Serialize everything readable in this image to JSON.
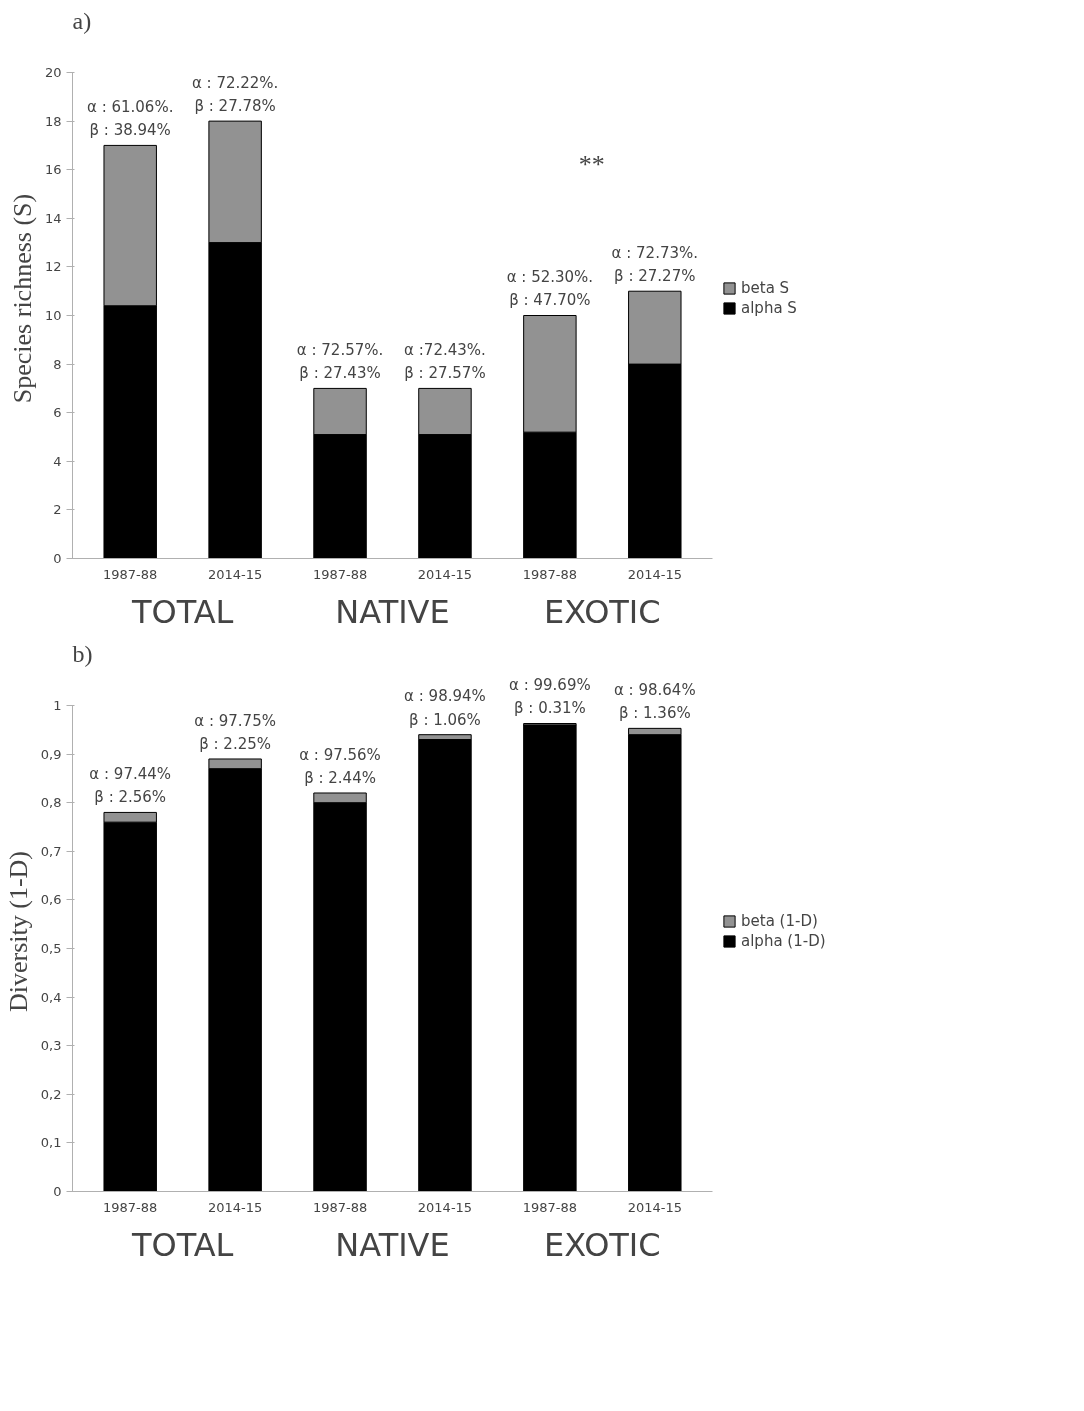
{
  "chart_data": [
    {
      "type": "bar",
      "title": "a)",
      "ylabel": "Species richness (S)",
      "stacked": true,
      "categories": [
        "1987-88",
        "2014-15",
        "1987-88",
        "2014-15",
        "1987-88",
        "2014-15"
      ],
      "series": [
        {
          "name": "alpha S",
          "color": "#000000",
          "values": [
            10.4,
            13,
            5.1,
            5.1,
            5.2,
            8
          ]
        },
        {
          "name": "beta S",
          "color": "#929292",
          "values": [
            6.6,
            5,
            1.9,
            1.9,
            4.8,
            3
          ]
        }
      ],
      "ylim": [
        0,
        20
      ],
      "yticks": [
        0,
        2,
        4,
        6,
        8,
        10,
        12,
        14,
        16,
        18,
        20
      ],
      "grid": false,
      "legend": "right",
      "annotations": [
        "α : 61.06%.\nβ : 38.94%",
        "α : 72.22%.\nβ : 27.78%",
        "α : 72.57%.\nβ : 27.43%",
        "α :72.43%.\nβ : 27.57%",
        "α : 52.30%.\nβ : 47.70%",
        "α : 72.73%.\nβ : 27.27%",
        "TOTAL",
        "NATIVE",
        "EXOTIC",
        "**"
      ]
    },
    {
      "type": "bar",
      "title": "b)",
      "ylabel": "Diversity (1-D)",
      "stacked": true,
      "categories": [
        "1987-88",
        "2014-15",
        "1987-88",
        "2014-15",
        "1987-88",
        "2014-15"
      ],
      "series": [
        {
          "name": "alpha (1-D)",
          "color": "#000000",
          "values": [
            0.76,
            0.87,
            0.8,
            0.93,
            0.96,
            0.94
          ]
        },
        {
          "name": "beta (1-D)",
          "color": "#929292",
          "values": [
            0.02,
            0.02,
            0.02,
            0.01,
            0.003,
            0.013
          ]
        }
      ],
      "ylim": [
        0,
        1
      ],
      "yticks": [
        0,
        {
          "value": 0.1,
          "label": "0,1"
        },
        {
          "value": 0.2,
          "label": "0,2"
        },
        {
          "value": 0.3,
          "label": "0,3"
        },
        {
          "value": 0.4,
          "label": "0,4"
        },
        {
          "value": 0.5,
          "label": "0,5"
        },
        {
          "value": 0.6,
          "label": "0,6"
        },
        {
          "value": 0.7,
          "label": "0,7"
        },
        {
          "value": 0.8,
          "label": "0,8"
        },
        {
          "value": 0.9,
          "label": "0,9"
        },
        1
      ],
      "grid": false,
      "legend": "right",
      "annotations": [
        "α : 97.44%\nβ : 2.56%",
        "α : 97.75%\nβ : 2.25%",
        "α : 97.56%\nβ : 2.44%",
        "α : 98.94%\nβ : 1.06%",
        "α : 99.69%\nβ : 0.31%",
        "α : 98.64%\nβ : 1.36%",
        "TOTAL",
        "NATIVE",
        "EXOTIC"
      ]
    }
  ]
}
